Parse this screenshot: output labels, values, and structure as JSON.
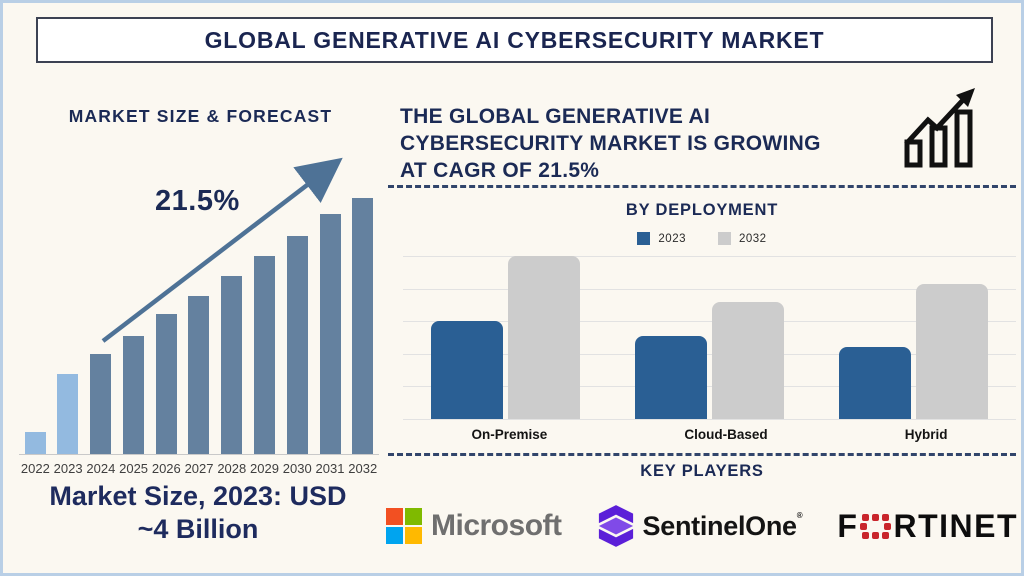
{
  "banner": {
    "title": "GLOBAL GENERATIVE AI CYBERSECURITY MARKET"
  },
  "left_panel": {
    "heading": "MARKET SIZE & FORECAST",
    "growth_label": "21.5%",
    "caption_lines": [
      "Market Size, 2023: USD",
      "~4 Billion"
    ]
  },
  "right_panel": {
    "headline_lines": [
      "THE GLOBAL GENERATIVE AI",
      "CYBERSECURITY MARKET IS GROWING",
      "AT CAGR OF 21.5%"
    ],
    "deployment_heading": "BY DEPLOYMENT",
    "key_players_heading": "KEY PLAYERS",
    "players": {
      "microsoft": "Microsoft",
      "sentinelone": "SentinelOne",
      "sentinelone_reg": "®",
      "fortinet_f": "F",
      "fortinet_rest": "RTINET"
    }
  },
  "chart_data": [
    {
      "type": "bar",
      "title": "MARKET SIZE & FORECAST",
      "categories": [
        "2022",
        "2023",
        "2024",
        "2025",
        "2026",
        "2027",
        "2028",
        "2029",
        "2030",
        "2031",
        "2032"
      ],
      "values": [
        1.1,
        4.0,
        5.0,
        5.9,
        7.0,
        7.9,
        8.9,
        9.9,
        10.9,
        12.0,
        12.8
      ],
      "unit": "USD Billion (estimated; caption states 2023 = ~4 Billion)",
      "annotation": "21.5%",
      "highlight_categories": [
        "2022",
        "2023"
      ],
      "bar_color_default": "#64819f",
      "bar_color_highlight": "#93bae0",
      "grid": false,
      "legend_position": "none"
    },
    {
      "type": "bar",
      "title": "BY DEPLOYMENT",
      "categories": [
        "On-Premise",
        "Cloud-Based",
        "Hybrid"
      ],
      "series": [
        {
          "name": "2023",
          "color": "#2a5f94",
          "values": [
            3.0,
            2.55,
            2.2
          ]
        },
        {
          "name": "2032",
          "color": "#cccccc",
          "values": [
            5.0,
            3.6,
            4.15
          ]
        }
      ],
      "ylim": [
        0,
        5
      ],
      "grid": true,
      "legend_position": "top"
    }
  ],
  "colors": {
    "navy": "#1b2a55",
    "arrow_blue": "#4e7296",
    "dashed_line": "#31456b",
    "background": "#fbf8f1",
    "frame_border": "#b9cfe6",
    "microsoft_squares": [
      "#f25022",
      "#7fba00",
      "#00a4ef",
      "#ffb900"
    ],
    "microsoft_text": "#6f6f6f",
    "sentinelone_purple": "#5b1fd8",
    "fortinet_red": "#c9252b"
  }
}
